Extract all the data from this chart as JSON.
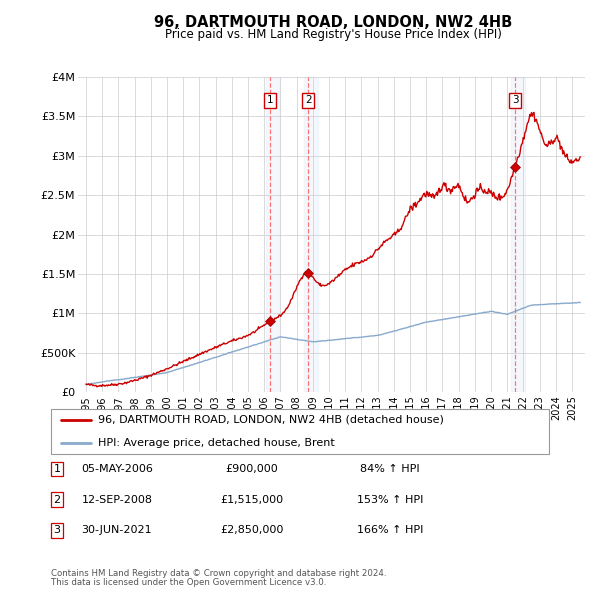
{
  "title": "96, DARTMOUTH ROAD, LONDON, NW2 4HB",
  "subtitle": "Price paid vs. HM Land Registry's House Price Index (HPI)",
  "footer1": "Contains HM Land Registry data © Crown copyright and database right 2024.",
  "footer2": "This data is licensed under the Open Government Licence v3.0.",
  "legend_label1": "96, DARTMOUTH ROAD, LONDON, NW2 4HB (detached house)",
  "legend_label2": "HPI: Average price, detached house, Brent",
  "transactions": [
    {
      "id": 1,
      "date": "05-MAY-2006",
      "price": "£900,000",
      "hpi": "84% ↑ HPI",
      "year": 2006.35,
      "price_val": 900000
    },
    {
      "id": 2,
      "date": "12-SEP-2008",
      "price": "£1,515,000",
      "hpi": "153% ↑ HPI",
      "year": 2008.71,
      "price_val": 1515000
    },
    {
      "id": 3,
      "date": "30-JUN-2021",
      "price": "£2,850,000",
      "hpi": "166% ↑ HPI",
      "year": 2021.49,
      "price_val": 2850000
    }
  ],
  "red_line_color": "#cc0000",
  "blue_line_color": "#88aacc",
  "shade_color": "#ddeeff",
  "ylim": [
    0,
    4000000
  ],
  "yticks": [
    0,
    500000,
    1000000,
    1500000,
    2000000,
    2500000,
    3000000,
    3500000,
    4000000
  ],
  "ytick_labels": [
    "£0",
    "£500K",
    "£1M",
    "£1.5M",
    "£2M",
    "£2.5M",
    "£3M",
    "£3.5M",
    "£4M"
  ],
  "xlim_start": 1994.5,
  "xlim_end": 2025.8,
  "xticks": [
    1995,
    1996,
    1997,
    1998,
    1999,
    2000,
    2001,
    2002,
    2003,
    2004,
    2005,
    2006,
    2007,
    2008,
    2009,
    2010,
    2011,
    2012,
    2013,
    2014,
    2015,
    2016,
    2017,
    2018,
    2019,
    2020,
    2021,
    2022,
    2023,
    2024,
    2025
  ]
}
